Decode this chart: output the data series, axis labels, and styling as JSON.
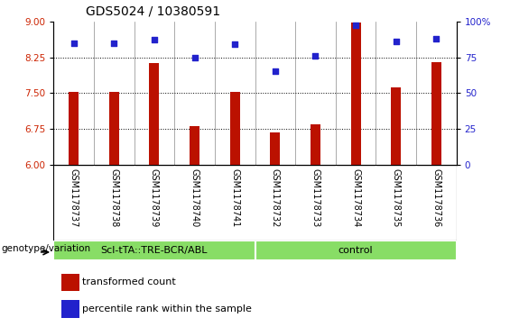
{
  "title": "GDS5024 / 10380591",
  "samples": [
    "GSM1178737",
    "GSM1178738",
    "GSM1178739",
    "GSM1178740",
    "GSM1178741",
    "GSM1178732",
    "GSM1178733",
    "GSM1178734",
    "GSM1178735",
    "GSM1178736"
  ],
  "bar_values": [
    7.52,
    7.52,
    8.12,
    6.82,
    7.52,
    6.68,
    6.85,
    8.98,
    7.62,
    8.15
  ],
  "scatter_values": [
    85,
    85,
    87,
    75,
    84,
    65,
    76,
    97,
    86,
    88
  ],
  "ylim_left": [
    6,
    9
  ],
  "ylim_right": [
    0,
    100
  ],
  "yticks_left": [
    6,
    6.75,
    7.5,
    8.25,
    9
  ],
  "yticks_right": [
    0,
    25,
    50,
    75,
    100
  ],
  "ytick_right_labels": [
    "0",
    "25",
    "50",
    "75",
    "100%"
  ],
  "bar_color": "#bb1100",
  "scatter_color": "#2222cc",
  "bar_bottom": 6,
  "hlines": [
    6.75,
    7.5,
    8.25
  ],
  "group1_label": "Scl-tTA::TRE-BCR/ABL",
  "group2_label": "control",
  "group1_count": 5,
  "group2_count": 5,
  "group_color": "#88dd66",
  "xlabel_left": "genotype/variation",
  "legend_bar_label": "transformed count",
  "legend_scatter_label": "percentile rank within the sample",
  "tick_color_left": "#cc2200",
  "tick_color_right": "#2222cc",
  "title_fontsize": 10,
  "tick_fontsize": 7.5,
  "bar_width": 0.25,
  "cell_bg_color": "#cccccc",
  "cell_bg_light": "#dddddd"
}
